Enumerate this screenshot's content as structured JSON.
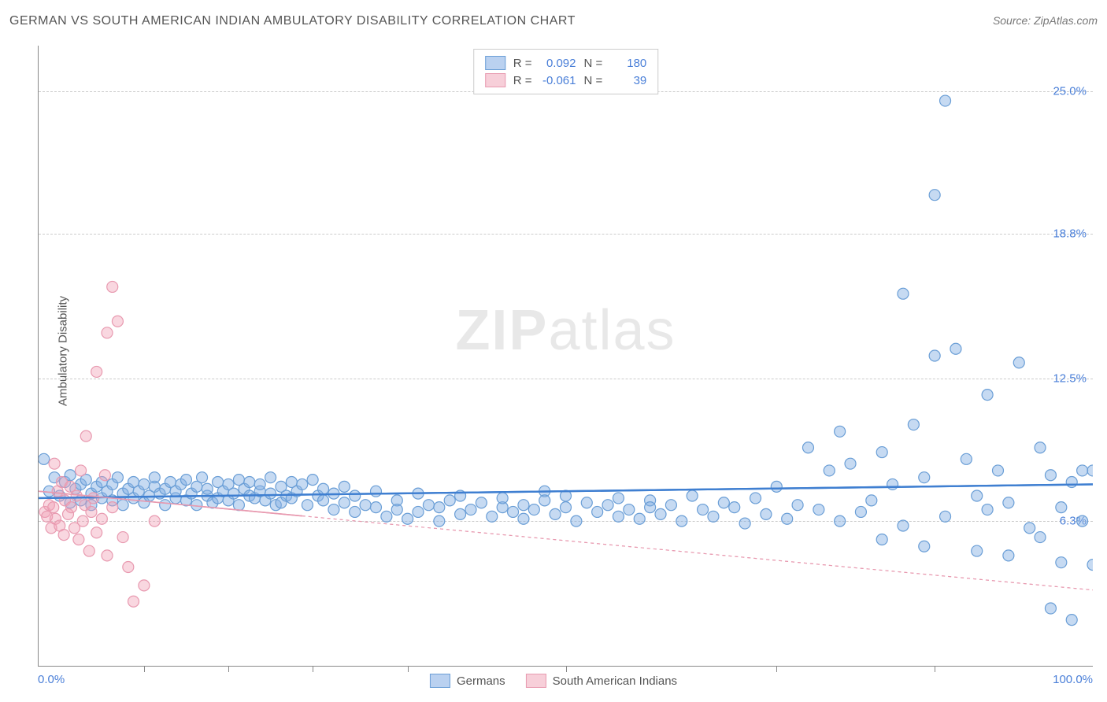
{
  "title": "GERMAN VS SOUTH AMERICAN INDIAN AMBULATORY DISABILITY CORRELATION CHART",
  "source": "Source: ZipAtlas.com",
  "y_axis_label": "Ambulatory Disability",
  "watermark": {
    "bold": "ZIP",
    "light": "atlas"
  },
  "chart": {
    "type": "scatter",
    "xlim": [
      0,
      100
    ],
    "ylim": [
      0,
      27
    ],
    "x_ticks_labeled": [
      {
        "v": 0,
        "label": "0.0%"
      },
      {
        "v": 100,
        "label": "100.0%"
      }
    ],
    "x_ticks_minor": [
      10,
      18,
      26,
      35,
      50,
      70,
      85
    ],
    "y_ticks": [
      {
        "v": 6.3,
        "label": "6.3%"
      },
      {
        "v": 12.5,
        "label": "12.5%"
      },
      {
        "v": 18.8,
        "label": "18.8%"
      },
      {
        "v": 25.0,
        "label": "25.0%"
      }
    ],
    "grid_color": "#d8d8d8",
    "background": "#ffffff",
    "marker_radius": 7,
    "marker_stroke_width": 1.2,
    "series": [
      {
        "name": "Germans",
        "fill": "rgba(129,172,227,0.45)",
        "stroke": "#6a9ed6",
        "R": "0.092",
        "N": "180",
        "trend": {
          "y_at_x0": 7.3,
          "y_at_x100": 7.9,
          "stroke": "#3f7fd1",
          "width": 2.4,
          "dash": "none",
          "solid_until_x": 100
        },
        "points": [
          [
            0.5,
            9.0
          ],
          [
            1,
            7.6
          ],
          [
            1.5,
            8.2
          ],
          [
            2,
            7.4
          ],
          [
            2.5,
            8.0
          ],
          [
            3,
            7.1
          ],
          [
            3,
            8.3
          ],
          [
            3.5,
            7.7
          ],
          [
            4,
            7.9
          ],
          [
            4,
            7.2
          ],
          [
            4.5,
            8.1
          ],
          [
            5,
            7.5
          ],
          [
            5,
            7.0
          ],
          [
            5.5,
            7.8
          ],
          [
            6,
            8.0
          ],
          [
            6,
            7.3
          ],
          [
            6.5,
            7.6
          ],
          [
            7,
            7.9
          ],
          [
            7,
            7.2
          ],
          [
            7.5,
            8.2
          ],
          [
            8,
            7.5
          ],
          [
            8,
            7.0
          ],
          [
            8.5,
            7.7
          ],
          [
            9,
            8.0
          ],
          [
            9,
            7.3
          ],
          [
            9.5,
            7.6
          ],
          [
            10,
            7.9
          ],
          [
            10,
            7.1
          ],
          [
            10.5,
            7.4
          ],
          [
            11,
            7.8
          ],
          [
            11,
            8.2
          ],
          [
            11.5,
            7.5
          ],
          [
            12,
            7.0
          ],
          [
            12,
            7.7
          ],
          [
            12.5,
            8.0
          ],
          [
            13,
            7.3
          ],
          [
            13,
            7.6
          ],
          [
            13.5,
            7.9
          ],
          [
            14,
            7.2
          ],
          [
            14,
            8.1
          ],
          [
            14.5,
            7.5
          ],
          [
            15,
            7.0
          ],
          [
            15,
            7.8
          ],
          [
            15.5,
            8.2
          ],
          [
            16,
            7.4
          ],
          [
            16,
            7.7
          ],
          [
            16.5,
            7.1
          ],
          [
            17,
            8.0
          ],
          [
            17,
            7.3
          ],
          [
            17.5,
            7.6
          ],
          [
            18,
            7.9
          ],
          [
            18,
            7.2
          ],
          [
            18.5,
            7.5
          ],
          [
            19,
            8.1
          ],
          [
            19,
            7.0
          ],
          [
            19.5,
            7.7
          ],
          [
            20,
            7.4
          ],
          [
            20,
            8.0
          ],
          [
            20.5,
            7.3
          ],
          [
            21,
            7.6
          ],
          [
            21,
            7.9
          ],
          [
            21.5,
            7.2
          ],
          [
            22,
            8.2
          ],
          [
            22,
            7.5
          ],
          [
            22.5,
            7.0
          ],
          [
            23,
            7.8
          ],
          [
            23,
            7.1
          ],
          [
            23.5,
            7.4
          ],
          [
            24,
            8.0
          ],
          [
            24,
            7.3
          ],
          [
            24.5,
            7.6
          ],
          [
            25,
            7.9
          ],
          [
            25.5,
            7.0
          ],
          [
            26,
            8.1
          ],
          [
            26.5,
            7.4
          ],
          [
            27,
            7.7
          ],
          [
            27,
            7.2
          ],
          [
            28,
            7.5
          ],
          [
            28,
            6.8
          ],
          [
            29,
            7.8
          ],
          [
            29,
            7.1
          ],
          [
            30,
            6.7
          ],
          [
            30,
            7.4
          ],
          [
            31,
            7.0
          ],
          [
            32,
            6.9
          ],
          [
            32,
            7.6
          ],
          [
            33,
            6.5
          ],
          [
            34,
            7.2
          ],
          [
            34,
            6.8
          ],
          [
            35,
            6.4
          ],
          [
            36,
            7.5
          ],
          [
            36,
            6.7
          ],
          [
            37,
            7.0
          ],
          [
            38,
            6.9
          ],
          [
            38,
            6.3
          ],
          [
            39,
            7.2
          ],
          [
            40,
            6.6
          ],
          [
            40,
            7.4
          ],
          [
            41,
            6.8
          ],
          [
            42,
            7.1
          ],
          [
            43,
            6.5
          ],
          [
            44,
            6.9
          ],
          [
            44,
            7.3
          ],
          [
            45,
            6.7
          ],
          [
            46,
            7.0
          ],
          [
            46,
            6.4
          ],
          [
            47,
            6.8
          ],
          [
            48,
            7.6
          ],
          [
            48,
            7.2
          ],
          [
            49,
            6.6
          ],
          [
            50,
            6.9
          ],
          [
            50,
            7.4
          ],
          [
            51,
            6.3
          ],
          [
            52,
            7.1
          ],
          [
            53,
            6.7
          ],
          [
            54,
            7.0
          ],
          [
            55,
            6.5
          ],
          [
            55,
            7.3
          ],
          [
            56,
            6.8
          ],
          [
            57,
            6.4
          ],
          [
            58,
            7.2
          ],
          [
            58,
            6.9
          ],
          [
            59,
            6.6
          ],
          [
            60,
            7.0
          ],
          [
            61,
            6.3
          ],
          [
            62,
            7.4
          ],
          [
            63,
            6.8
          ],
          [
            64,
            6.5
          ],
          [
            65,
            7.1
          ],
          [
            66,
            6.9
          ],
          [
            67,
            6.2
          ],
          [
            68,
            7.3
          ],
          [
            69,
            6.6
          ],
          [
            70,
            7.8
          ],
          [
            71,
            6.4
          ],
          [
            72,
            7.0
          ],
          [
            73,
            9.5
          ],
          [
            74,
            6.8
          ],
          [
            75,
            8.5
          ],
          [
            76,
            10.2
          ],
          [
            76,
            6.3
          ],
          [
            77,
            8.8
          ],
          [
            78,
            6.7
          ],
          [
            79,
            7.2
          ],
          [
            80,
            9.3
          ],
          [
            80,
            5.5
          ],
          [
            81,
            7.9
          ],
          [
            82,
            16.2
          ],
          [
            82,
            6.1
          ],
          [
            83,
            10.5
          ],
          [
            84,
            8.2
          ],
          [
            84,
            5.2
          ],
          [
            85,
            13.5
          ],
          [
            85,
            20.5
          ],
          [
            86,
            24.6
          ],
          [
            86,
            6.5
          ],
          [
            87,
            13.8
          ],
          [
            88,
            9.0
          ],
          [
            89,
            7.4
          ],
          [
            89,
            5.0
          ],
          [
            90,
            6.8
          ],
          [
            90,
            11.8
          ],
          [
            91,
            8.5
          ],
          [
            92,
            4.8
          ],
          [
            92,
            7.1
          ],
          [
            93,
            13.2
          ],
          [
            94,
            6.0
          ],
          [
            95,
            9.5
          ],
          [
            95,
            5.6
          ],
          [
            96,
            2.5
          ],
          [
            96,
            8.3
          ],
          [
            97,
            6.9
          ],
          [
            97,
            4.5
          ],
          [
            98,
            8.0
          ],
          [
            98,
            2.0
          ],
          [
            99,
            8.5
          ],
          [
            99,
            6.3
          ],
          [
            100,
            8.5
          ],
          [
            100,
            4.4
          ]
        ]
      },
      {
        "name": "South American Indians",
        "fill": "rgba(240,160,180,0.42)",
        "stroke": "#e89ab0",
        "R": "-0.061",
        "N": "39",
        "trend": {
          "y_at_x0": 7.6,
          "y_at_x100": 3.3,
          "stroke": "#e89ab0",
          "width": 1.6,
          "dash": "4,4",
          "solid_until_x": 25
        },
        "points": [
          [
            0.6,
            6.7
          ],
          [
            0.8,
            6.5
          ],
          [
            1.0,
            7.0
          ],
          [
            1.2,
            6.0
          ],
          [
            1.4,
            6.9
          ],
          [
            1.6,
            6.4
          ],
          [
            1.8,
            7.6
          ],
          [
            1.5,
            8.8
          ],
          [
            2.0,
            6.1
          ],
          [
            2.2,
            8.0
          ],
          [
            2.4,
            5.7
          ],
          [
            2.5,
            7.2
          ],
          [
            2.8,
            6.6
          ],
          [
            3.0,
            7.8
          ],
          [
            3.1,
            6.9
          ],
          [
            3.4,
            6.0
          ],
          [
            3.6,
            7.4
          ],
          [
            3.8,
            5.5
          ],
          [
            4.0,
            8.5
          ],
          [
            4.2,
            6.3
          ],
          [
            4.4,
            7.0
          ],
          [
            4.5,
            10.0
          ],
          [
            4.8,
            5.0
          ],
          [
            5.0,
            6.7
          ],
          [
            5.2,
            7.3
          ],
          [
            5.5,
            12.8
          ],
          [
            5.5,
            5.8
          ],
          [
            6.0,
            6.4
          ],
          [
            6.3,
            8.3
          ],
          [
            6.5,
            14.5
          ],
          [
            6.5,
            4.8
          ],
          [
            7.0,
            6.9
          ],
          [
            7.0,
            16.5
          ],
          [
            7.5,
            15.0
          ],
          [
            8.0,
            5.6
          ],
          [
            8.5,
            4.3
          ],
          [
            9.0,
            2.8
          ],
          [
            10,
            3.5
          ],
          [
            11,
            6.3
          ]
        ]
      }
    ]
  },
  "legend_bottom": [
    {
      "label": "Germans",
      "fill": "rgba(129,172,227,0.55)",
      "stroke": "#6a9ed6"
    },
    {
      "label": "South American Indians",
      "fill": "rgba(240,160,180,0.5)",
      "stroke": "#e89ab0"
    }
  ]
}
